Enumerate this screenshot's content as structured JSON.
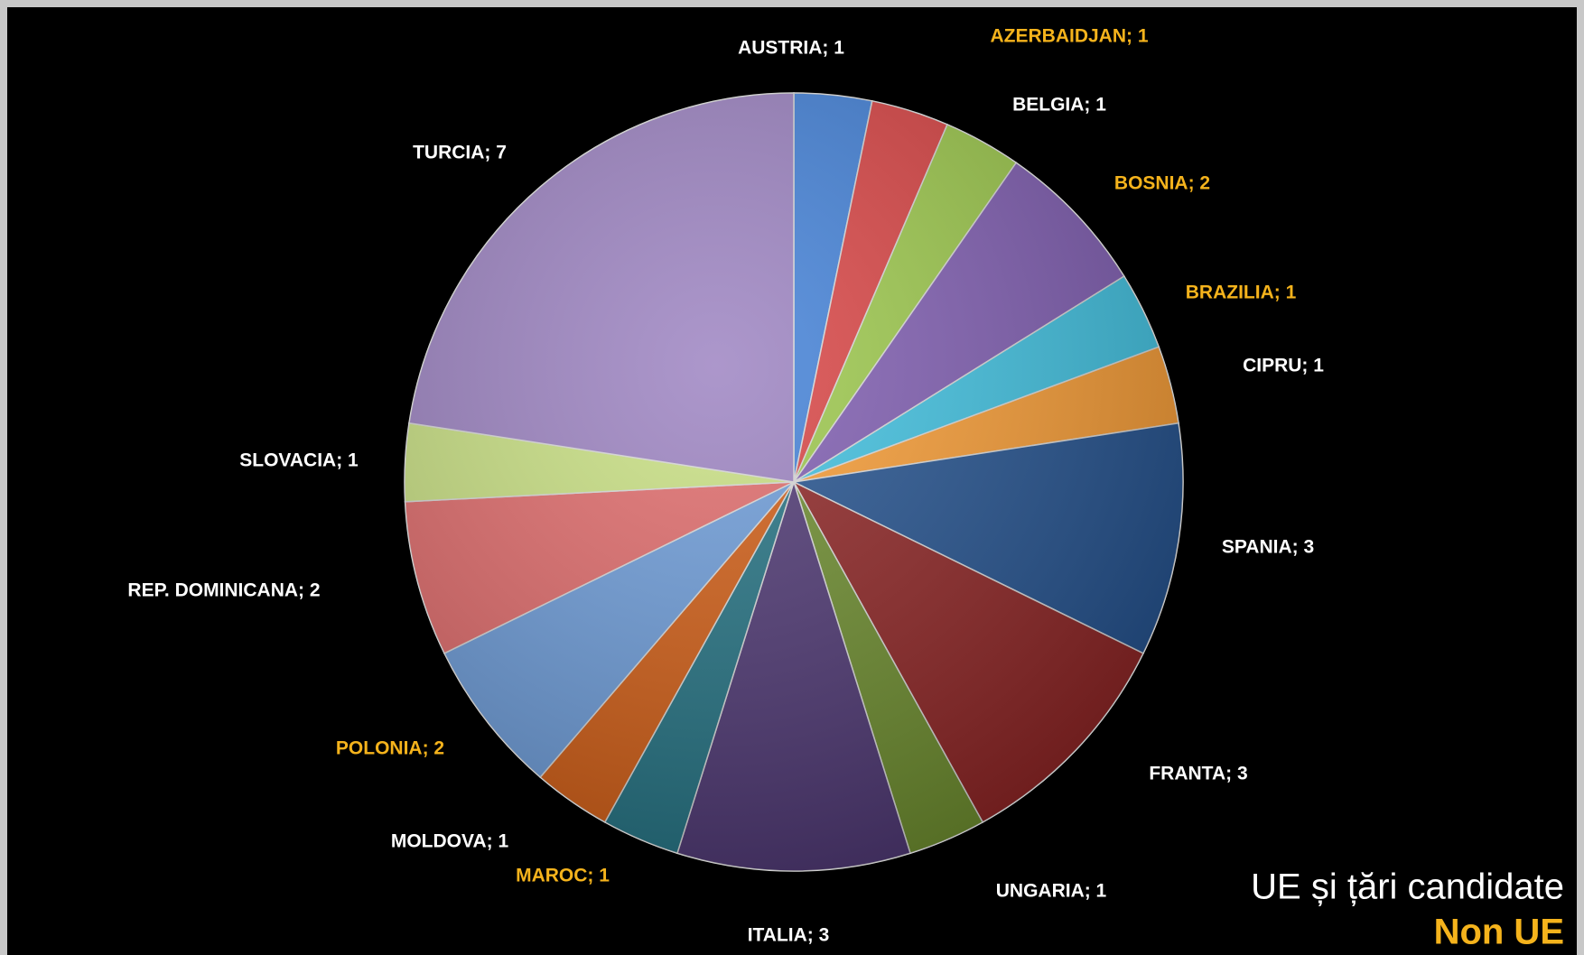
{
  "chart_data": {
    "type": "pie",
    "values": [
      1,
      1,
      1,
      2,
      1,
      1,
      3,
      3,
      1,
      3,
      1,
      1,
      2,
      2,
      1,
      7
    ],
    "value_labels": [
      "AUSTRIA; 1",
      "AZERBAIDJAN; 1",
      "BELGIA; 1",
      "BOSNIA; 2",
      "BRAZILIA; 1",
      "CIPRU; 1",
      "SPANIA; 3",
      "FRANTA; 3",
      "UNGARIA; 1",
      "ITALIA; 3",
      "MAROC; 1",
      "MOLDOVA; 1",
      "POLONIA; 2",
      "REP. DOMINICANA; 2",
      "SLOVACIA; 1",
      "TURCIA; 7"
    ],
    "colors": [
      "#3f7fd8",
      "#d94040",
      "#9bc848",
      "#7d5ab0",
      "#3cc0e0",
      "#f79a30",
      "#1f4e8c",
      "#8b2020",
      "#6a8a2a",
      "#4a3370",
      "#1f6f80",
      "#d05a10",
      "#6a9ad8",
      "#e06868",
      "#c8e080",
      "#9a80c0"
    ],
    "groups": [
      "UE și țări candidate",
      "Non UE",
      "UE și țări candidate",
      "Non UE",
      "Non UE",
      "UE și țări candidate",
      "UE și țări candidate",
      "UE și țări candidate",
      "UE și țări candidate",
      "UE și țări candidate",
      "Non UE",
      "UE și țări candidate",
      "Non UE",
      "UE și țări candidate",
      "UE și țări candidate",
      "UE și țări candidate"
    ],
    "legend": [
      {
        "name": "UE și țări candidate",
        "color": "#ffffff"
      },
      {
        "name": "Non UE",
        "color": "#f5b31c"
      }
    ]
  }
}
